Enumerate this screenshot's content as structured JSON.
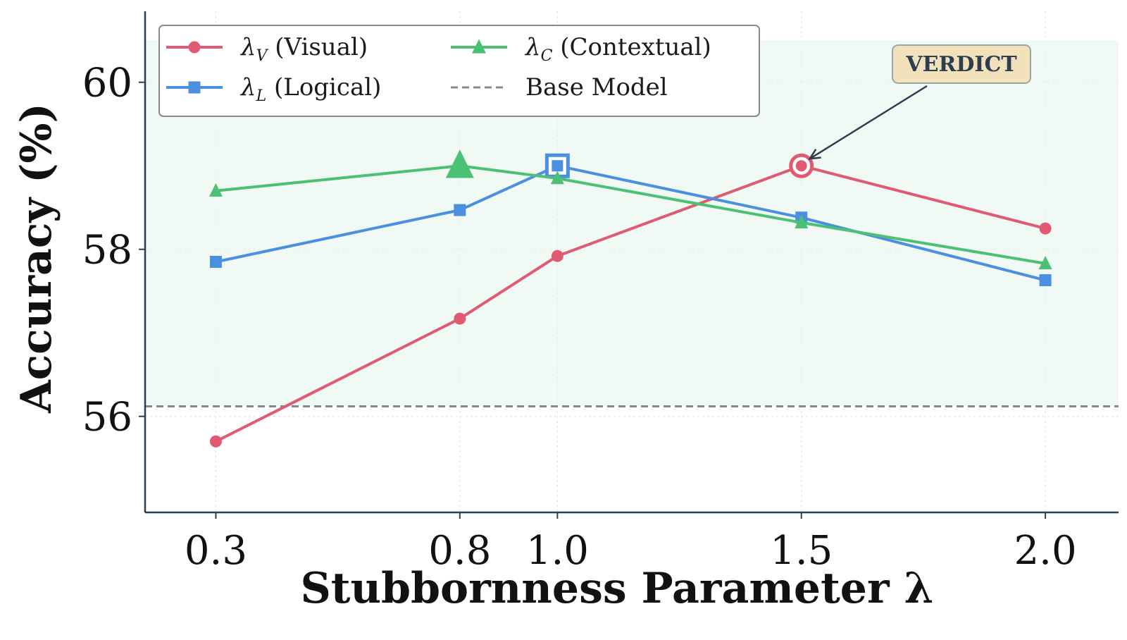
{
  "chart_data": {
    "type": "line",
    "xlabel": "Stubbornness Parameter λ",
    "ylabel": "Accuracy (%)",
    "x": [
      0.3,
      0.8,
      1.0,
      1.5,
      2.0
    ],
    "x_tick_labels": [
      "0.3",
      "0.8",
      "1.0",
      "1.5",
      "2.0"
    ],
    "y_ticks": [
      56,
      58,
      60
    ],
    "y_tick_labels": [
      "56",
      "58",
      "60"
    ],
    "xlim": [
      0.155,
      2.15
    ],
    "ylim": [
      54.85,
      60.85
    ],
    "grid": true,
    "legend_position": "top-left",
    "series": [
      {
        "name": "(Visual)",
        "symbol": "λ",
        "subscript": "V",
        "color": "#e05a72",
        "marker": "circle",
        "values": [
          55.7,
          57.17,
          57.92,
          59.0,
          58.25
        ],
        "highlight_index": 3
      },
      {
        "name": "(Logical)",
        "symbol": "λ",
        "subscript": "L",
        "color": "#4a8fe0",
        "marker": "square",
        "values": [
          57.85,
          58.47,
          59.0,
          58.38,
          57.63
        ],
        "highlight_index": 2
      },
      {
        "name": "(Contextual)",
        "symbol": "λ",
        "subscript": "C",
        "color": "#4cc074",
        "marker": "triangle",
        "values": [
          58.7,
          59.0,
          58.85,
          58.32,
          57.83
        ],
        "highlight_index": 1
      }
    ],
    "baseline": {
      "name": "Base Model",
      "value": 56.12,
      "color": "#808b96"
    },
    "shaded_region": {
      "from": 56.12,
      "to": 60.5,
      "color": "#e8f5ec"
    },
    "annotation": {
      "text": "VERDICT",
      "target_series": 0,
      "target_index": 3
    }
  }
}
